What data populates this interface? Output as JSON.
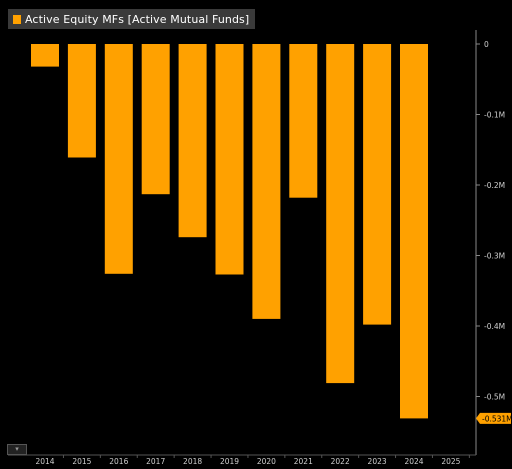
{
  "chart_data": {
    "type": "bar",
    "categories": [
      "2014",
      "2015",
      "2016",
      "2017",
      "2018",
      "2019",
      "2020",
      "2021",
      "2022",
      "2023",
      "2024",
      "2025"
    ],
    "series": [
      {
        "name": "Active Equity MFs [Active Mutual Funds]",
        "values": [
          -0.032,
          -0.161,
          -0.326,
          -0.213,
          -0.274,
          -0.327,
          -0.39,
          -0.218,
          -0.481,
          -0.398,
          -0.531,
          null
        ]
      }
    ],
    "yticks": [
      {
        "value": 0,
        "label": "0"
      },
      {
        "value": -0.1,
        "label": "-0.1M"
      },
      {
        "value": -0.2,
        "label": "-0.2M"
      },
      {
        "value": -0.3,
        "label": "-0.3M"
      },
      {
        "value": -0.4,
        "label": "-0.4M"
      },
      {
        "value": -0.5,
        "label": "-0.5M"
      }
    ],
    "ylim": [
      -0.56,
      0.005
    ],
    "last_value_label": "-0.531M",
    "grid": false,
    "legend_position": "top-left",
    "colors": {
      "bar": "#ffa100",
      "background": "#000000",
      "legend_bg": "#3a3a3a",
      "axis": "#888888"
    }
  },
  "toolbar": {
    "icon": "chart-settings-icon"
  }
}
